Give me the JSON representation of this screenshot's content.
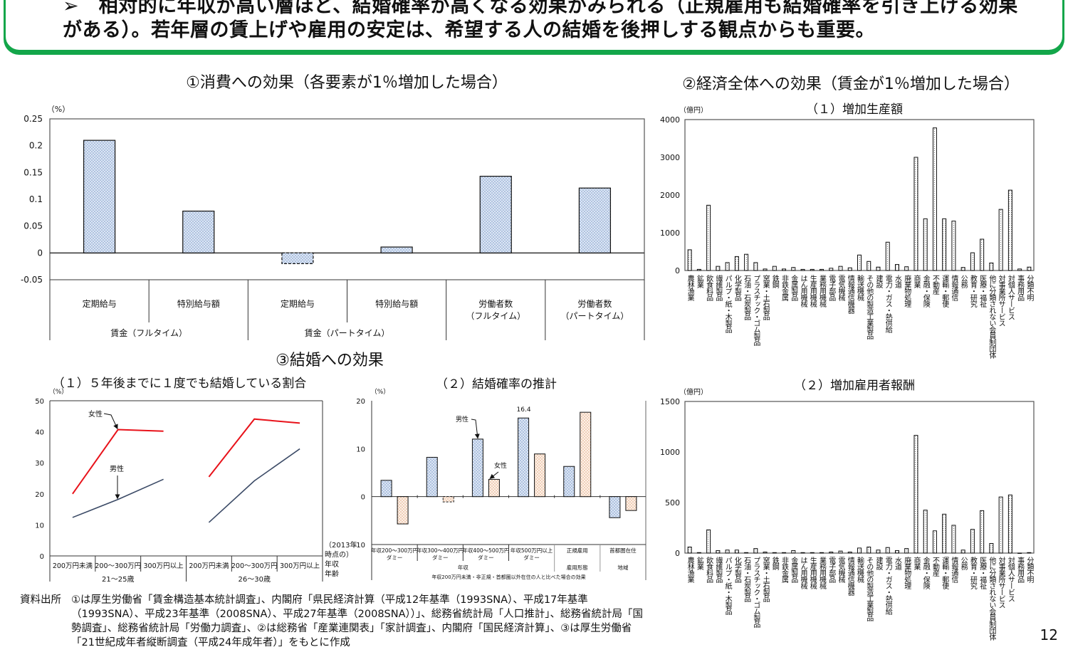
{
  "headline": {
    "line1": "➢　相対的に年収が高い層ほど、結婚確率が高くなる効果がみられる（正規雇用も結婚確率を引き上げる効果",
    "line2": "がある）。若年層の賃上げや雇用の安定は、希望する人の結婚を後押しする観点からも重要。",
    "border_color": "#13a64a"
  },
  "sections": {
    "consumption": "①消費への効果（各要素が1％増加した場合）",
    "economy": "②経済全体への効果（賃金が1％増加した場合）",
    "marriage": "③結婚への効果"
  },
  "chart_data": [
    {
      "type": "bar",
      "unit": "（%）",
      "ylim": [
        -0.05,
        0.25
      ],
      "yticks": [
        0.25,
        0.2,
        0.15,
        0.1,
        0.05,
        0,
        -0.05
      ],
      "categories": [
        "定期給与",
        "特別給与額",
        "定期給与",
        "特別給与額",
        "労働者数\n（フルタイム）",
        "労働者数\n（パートタイム）"
      ],
      "groups": [
        {
          "label": "賃金（フルタイム）",
          "span": 2
        },
        {
          "label": "賃金（パートタイム）",
          "span": 2
        },
        {
          "label": "",
          "span": 1
        },
        {
          "label": "",
          "span": 1
        }
      ],
      "values": [
        0.21,
        0.078,
        -0.02,
        0.011,
        0.143,
        0.121
      ],
      "dashed_negative": true,
      "color": "#dce6f4"
    },
    {
      "type": "bar",
      "title": "（１）増加生産額",
      "unit": "（億円）",
      "ylim": [
        0,
        4000
      ],
      "yticks": [
        4000,
        3000,
        2000,
        1000,
        0
      ],
      "categories": [
        "農林漁業",
        "鉱業",
        "飲食料品",
        "繊維製品",
        "パルプ・紙・木製品",
        "化学製品",
        "石油・石炭製品",
        "プラスチック・ゴム製品",
        "窯業・土石製品",
        "鉄鋼",
        "非鉄金属",
        "金属製品",
        "はん用機械",
        "生産用機械",
        "業務用機械",
        "電子部品",
        "電気機械",
        "情報通信機器",
        "輸送機械",
        "その他の製造工業製品",
        "建設",
        "電力・ガス・熱供給",
        "水道",
        "廃棄物処理",
        "商業",
        "金融・保険",
        "不動産",
        "運輸・郵便",
        "情報通信",
        "公務",
        "教育・研究",
        "医療・福祉",
        "他に分類されない会員制団体",
        "対事業所サービス",
        "対個人サービス",
        "事務用品",
        "分類不明"
      ],
      "values": [
        550,
        30,
        1730,
        110,
        210,
        370,
        430,
        210,
        40,
        110,
        40,
        80,
        30,
        30,
        30,
        60,
        110,
        70,
        410,
        240,
        90,
        750,
        160,
        100,
        3000,
        1370,
        3780,
        1370,
        1310,
        80,
        470,
        830,
        200,
        1620,
        2130,
        40,
        90
      ]
    },
    {
      "type": "bar",
      "title": "（２）増加雇用者報酬",
      "unit": "（億円）",
      "ylim": [
        0,
        1500
      ],
      "yticks": [
        1500,
        1000,
        500,
        0
      ],
      "categories": [
        "農林漁業",
        "鉱業",
        "飲食料品",
        "繊維製品",
        "パルプ・紙・木製品",
        "化学製品",
        "石油・石炭製品",
        "プラスチック・ゴム製品",
        "窯業・土石製品",
        "鉄鋼",
        "非鉄金属",
        "金属製品",
        "はん用機械",
        "生産用機械",
        "業務用機械",
        "電子部品",
        "電気機械",
        "情報通信機器",
        "輸送機械",
        "その他の製造工業製品",
        "建設",
        "電力・ガス・熱供給",
        "水道",
        "廃棄物処理",
        "商業",
        "金融・保険",
        "不動産",
        "運輸・郵便",
        "情報通信",
        "公務",
        "教育・研究",
        "医療・福祉",
        "他に分類されない会員制団体",
        "対事業所サービス",
        "対個人サービス",
        "事務用品",
        "分類不明"
      ],
      "values": [
        60,
        5,
        230,
        25,
        30,
        30,
        5,
        45,
        10,
        5,
        5,
        25,
        5,
        5,
        5,
        10,
        20,
        10,
        50,
        60,
        30,
        55,
        25,
        45,
        1165,
        425,
        220,
        385,
        275,
        30,
        235,
        420,
        95,
        555,
        575,
        0,
        5
      ]
    },
    {
      "type": "line",
      "title": "（１）５年後までに１度でも結婚している割合",
      "unit": "（%）",
      "ylim": [
        0,
        50
      ],
      "yticks": [
        50,
        40,
        30,
        20,
        10,
        0
      ],
      "categories": [
        "200万円未満",
        "200～300万円",
        "300万円以上",
        "200万円未満",
        "200～300万円",
        "300万円以上"
      ],
      "groups": [
        {
          "label": "21～25歳",
          "span": 3
        },
        {
          "label": "26～30歳",
          "span": 3
        }
      ],
      "axis_notes": [
        "（2013年",
        "時点の）",
        "年収",
        "年齢"
      ],
      "series": [
        {
          "name": "女性",
          "color": "#e8121a",
          "values": [
            20.0,
            40.7,
            40.2,
            25.5,
            44.1,
            42.8
          ]
        },
        {
          "name": "男性",
          "color": "#3b4a66",
          "values": [
            12.4,
            18.2,
            24.7,
            10.8,
            24.2,
            34.5
          ]
        }
      ]
    },
    {
      "type": "bar",
      "title": "（２）結婚確率の推計",
      "unit": "（%）",
      "ylim": [
        -10,
        20
      ],
      "yticks": [
        20,
        10,
        0,
        -10
      ],
      "categories": [
        "年収200～300万円\nダミー",
        "年収300～400万円\nダミー",
        "年収400～500万円\nダミー",
        "年収500万円以上\nダミー",
        "正規雇用",
        "首都圏在住"
      ],
      "groups": [
        {
          "label": "年収",
          "span": 4
        },
        {
          "label": "雇用形態",
          "span": 1
        },
        {
          "label": "地域",
          "span": 1
        }
      ],
      "footnote": "年収200万円未満・非正規・首都圏以外在住の人と比べた場合の効果",
      "annotation": "16.4",
      "series": [
        {
          "name": "男性",
          "color": "#dce6f4",
          "values": [
            3.4,
            8.2,
            12.0,
            16.4,
            6.3,
            -4.4
          ]
        },
        {
          "name": "女性",
          "color": "#fbe8da",
          "values": [
            -5.7,
            -1.1,
            3.6,
            8.9,
            17.6,
            -2.9
          ]
        }
      ]
    }
  ],
  "source": {
    "label": "資料出所",
    "text": "①は厚生労働省「賃金構造基本統計調査」、内閣府「県民経済計算（平成12年基準（1993SNA）、平成17年基準（1993SNA）、平成23年基準（2008SNA）、平成27年基準（2008SNA））」、総務省統計局「人口推計」、総務省統計局「国勢調査」、総務省統計局「労働力調査」、②は総務省「産業連関表」「家計調査」、内閣府「国民経済計算」、③は厚生労働省「21世紀成年者縦断調査（平成24年成年者）」をもとに作成"
  },
  "page_number": "12"
}
